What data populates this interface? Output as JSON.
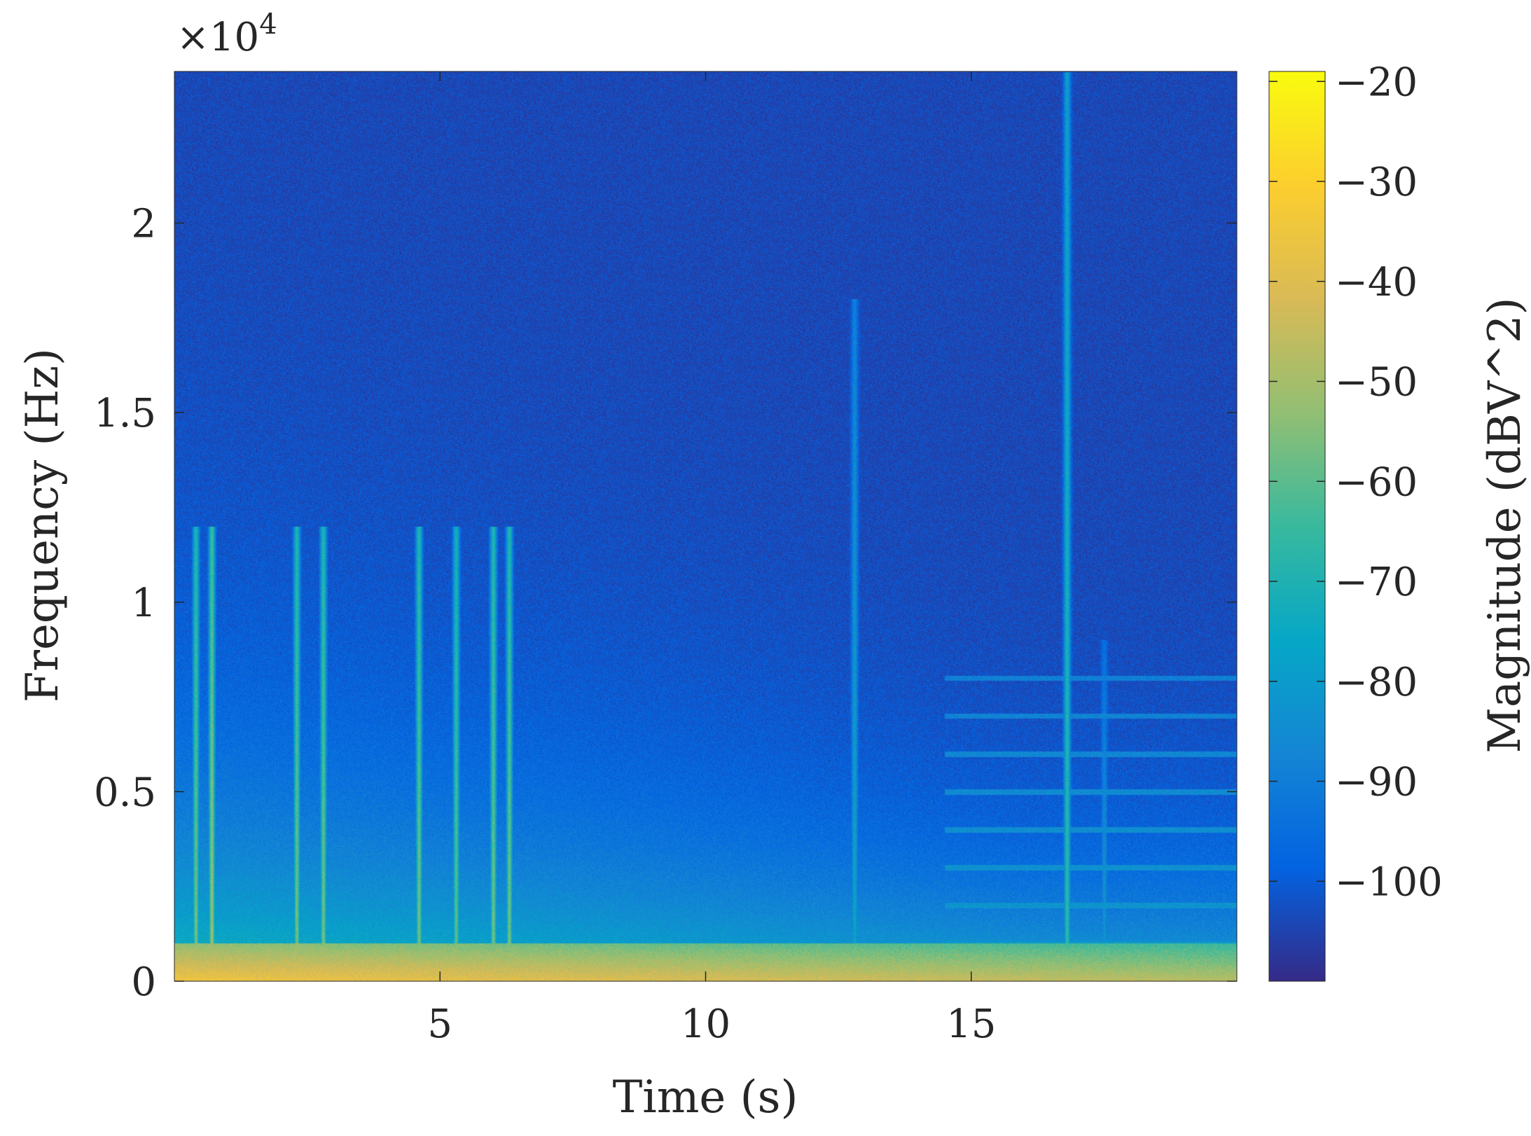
{
  "chart_data": {
    "type": "heatmap",
    "subtype": "spectrogram",
    "xlabel": "Time (s)",
    "ylabel": "Frequency (Hz)",
    "y_exponent_label": "×10",
    "y_exponent_power": "4",
    "colorbar_label": "Magnitude (dBV^2)",
    "colormap": "parula",
    "colormap_stops": [
      "#352a87",
      "#0363e1",
      "#1485d4",
      "#06a7c6",
      "#38b99e",
      "#92bf73",
      "#d9ba56",
      "#fcce2e",
      "#f9fb0e"
    ],
    "xlim": [
      0,
      20
    ],
    "ylim": [
      0,
      24000
    ],
    "clim": [
      -110,
      -19
    ],
    "x_ticks": [
      5,
      10,
      15
    ],
    "x_tick_labels": [
      "5",
      "10",
      "15"
    ],
    "y_ticks": [
      0,
      5000,
      10000,
      15000,
      20000
    ],
    "y_tick_labels": [
      "0",
      "0.5",
      "1",
      "1.5",
      "2"
    ],
    "colorbar_ticks": [
      -20,
      -30,
      -40,
      -50,
      -60,
      -70,
      -80,
      -90,
      -100
    ],
    "colorbar_tick_labels": [
      "−20",
      "−30",
      "−40",
      "−50",
      "−60",
      "−70",
      "−80",
      "−90",
      "−100"
    ],
    "background_magnitude": -104,
    "low_frequency_band": {
      "freq_max": 1000,
      "magnitude": -35
    },
    "broadband_events": [
      {
        "time": 0.4,
        "freq_max": 12000,
        "magnitude": -55
      },
      {
        "time": 0.7,
        "freq_max": 12000,
        "magnitude": -50
      },
      {
        "time": 2.3,
        "freq_max": 12000,
        "magnitude": -55
      },
      {
        "time": 2.8,
        "freq_max": 12000,
        "magnitude": -55
      },
      {
        "time": 4.6,
        "freq_max": 12000,
        "magnitude": -55
      },
      {
        "time": 5.3,
        "freq_max": 12000,
        "magnitude": -58
      },
      {
        "time": 6.0,
        "freq_max": 12000,
        "magnitude": -55
      },
      {
        "time": 6.3,
        "freq_max": 12000,
        "magnitude": -55
      },
      {
        "time": 12.8,
        "freq_max": 18000,
        "magnitude": -75
      },
      {
        "time": 16.8,
        "freq_max": 24000,
        "magnitude": -65
      },
      {
        "time": 17.5,
        "freq_max": 9000,
        "magnitude": -80
      }
    ],
    "harmonic_lines": {
      "time_start": 14.5,
      "time_end": 20,
      "frequencies": [
        1000,
        2000,
        3000,
        4000,
        5000,
        6000,
        7000,
        8000
      ],
      "magnitude": -80
    }
  }
}
